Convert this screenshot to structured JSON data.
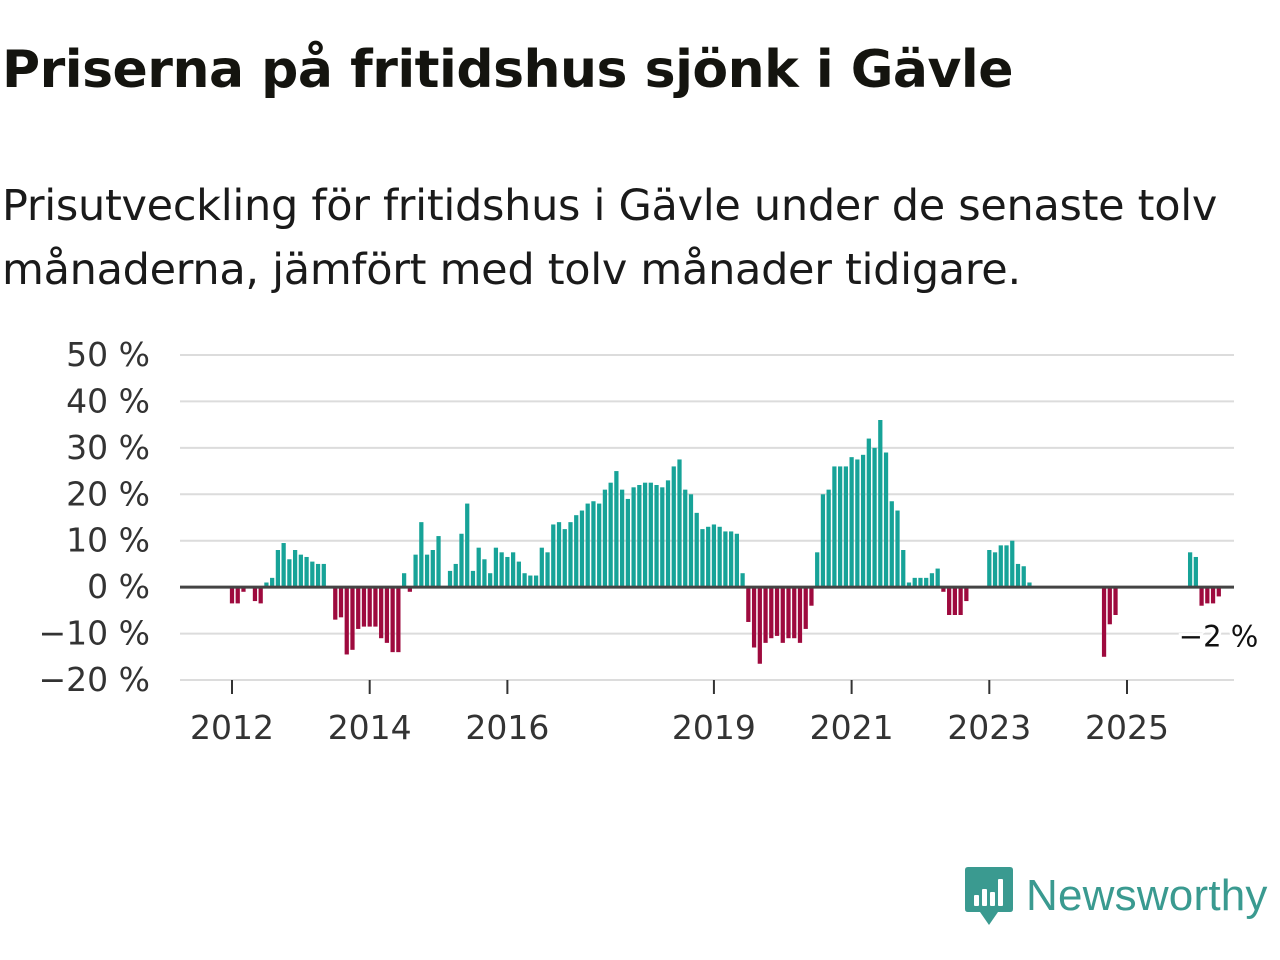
{
  "title": "Priserna på fritidshus sjönk i Gävle",
  "subtitle": "Prisutveckling för fritidshus i Gävle under de senaste tolv månaderna, jämfört med tolv månader tidigare.",
  "brand": {
    "name": "Newsworthy"
  },
  "colors": {
    "positive": "#17a398",
    "negative": "#9e0a3e",
    "grid": "#dcdcdc",
    "zero": "#444444"
  },
  "chart_data": {
    "type": "bar",
    "title": "Priserna på fritidshus sjönk i Gävle",
    "xlabel": "",
    "ylabel": "",
    "ylim": [
      -20,
      50
    ],
    "y_ticks": [
      50,
      40,
      30,
      20,
      10,
      0,
      -10,
      -20
    ],
    "y_tick_labels": [
      "50 %",
      "40 %",
      "30 %",
      "20 %",
      "10 %",
      "0 %",
      "−10 %",
      "−20 %"
    ],
    "x_ticks": [
      2012,
      2014,
      2016,
      2019,
      2021,
      2023,
      2025
    ],
    "x_tick_labels": [
      "2012",
      "2014",
      "2016",
      "2019",
      "2021",
      "2023",
      "2025"
    ],
    "x_start": 2011.25,
    "x_step": 0.0833333,
    "end_label": "−2 %",
    "values": [
      null,
      null,
      null,
      null,
      null,
      null,
      null,
      null,
      null,
      -3.5,
      -3.5,
      -1,
      null,
      -3,
      -3.5,
      1,
      2,
      8,
      9.5,
      6,
      8,
      7,
      6.5,
      5.5,
      5,
      5,
      null,
      -7,
      -6.5,
      -14.5,
      -13.5,
      -9,
      -8.5,
      -8.5,
      -8.5,
      -11,
      -12,
      -14,
      -14,
      3,
      -1,
      7,
      14,
      7,
      8,
      11,
      null,
      3.5,
      5,
      11.5,
      18,
      3.5,
      8.5,
      6,
      3,
      8.5,
      7.5,
      6.5,
      7.5,
      5.5,
      3,
      2.5,
      2.5,
      8.5,
      7.5,
      13.5,
      14,
      12.5,
      14,
      15.5,
      16.5,
      18,
      18.5,
      18,
      21,
      22.5,
      25,
      21,
      19,
      21.5,
      22,
      22.5,
      22.5,
      22,
      21.5,
      23,
      26,
      27.5,
      21,
      20,
      16,
      12.5,
      13,
      13.5,
      13,
      12,
      12,
      11.5,
      3,
      -7.5,
      -13,
      -16.5,
      -12,
      -11,
      -10.5,
      -12,
      -11,
      -11,
      -12,
      -9,
      -4,
      7.5,
      20,
      21,
      26,
      26,
      26,
      28,
      27.5,
      28.5,
      32,
      30,
      36,
      29,
      18.5,
      16.5,
      8,
      1,
      2,
      2,
      2,
      3,
      4,
      -1,
      -6,
      -6,
      -6,
      -3,
      null,
      null,
      null,
      8,
      7.5,
      9,
      9,
      10,
      5,
      4.5,
      1,
      null,
      null,
      null,
      null,
      null,
      null,
      null,
      null,
      null,
      null,
      null,
      null,
      -15,
      -8,
      -6,
      null,
      null,
      null,
      null,
      null,
      null,
      null,
      null,
      null,
      null,
      null,
      null,
      7.5,
      6.5,
      -4,
      -3.5,
      -3.5,
      -2
    ]
  }
}
